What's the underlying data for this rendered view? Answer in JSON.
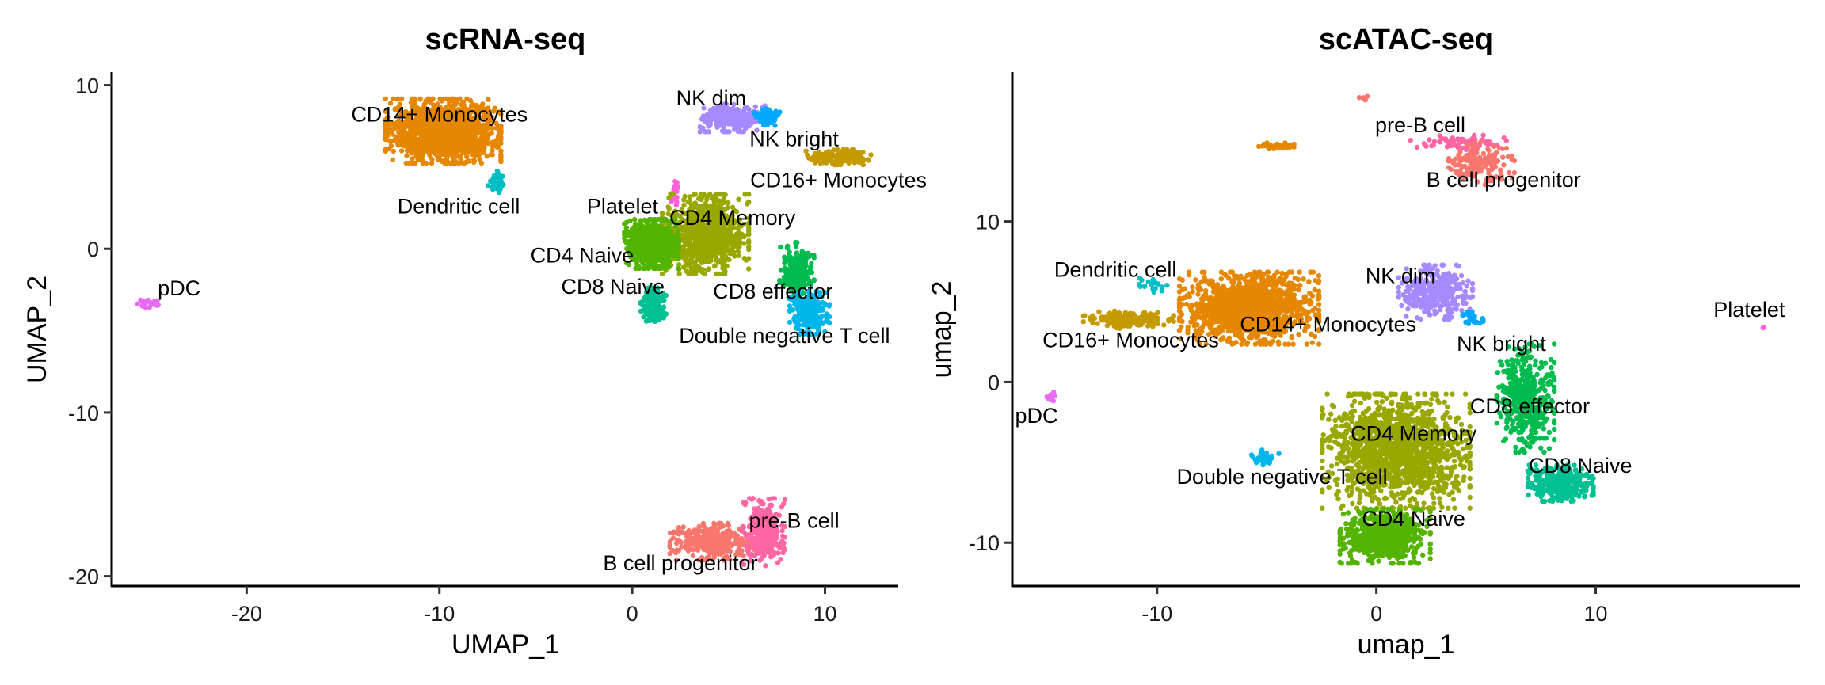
{
  "chart_data": [
    {
      "type": "scatter",
      "title": "scRNA-seq",
      "xlabel": "UMAP_1",
      "ylabel": "UMAP_2",
      "xlim": [
        -27.0,
        13.8
      ],
      "ylim": [
        -20.6,
        10.8
      ],
      "xticks": [
        -20,
        -10,
        0,
        10
      ],
      "yticks": [
        -20,
        -10,
        0,
        10
      ],
      "grid": false,
      "legend": "none",
      "clusters": [
        {
          "name": "CD14+ Monocytes",
          "color": "#E58700",
          "center": [
            -9.8,
            7.2
          ],
          "spread": [
            1.6,
            1.05
          ],
          "n": 1400,
          "label_pos": [
            -10.0,
            8.2
          ]
        },
        {
          "name": "Dendritic cell",
          "color": "#00BFC4",
          "center": [
            -7.0,
            4.1
          ],
          "spread": [
            0.25,
            0.35
          ],
          "n": 40,
          "label_pos": [
            -9.0,
            2.6
          ]
        },
        {
          "name": "NK dim",
          "color": "#A58AFF",
          "center": [
            5.2,
            8.0
          ],
          "spread": [
            0.9,
            0.45
          ],
          "n": 260,
          "label_pos": [
            4.1,
            9.2
          ]
        },
        {
          "name": "NK bright",
          "color": "#00A9FF",
          "center": [
            7.0,
            8.1
          ],
          "spread": [
            0.35,
            0.3
          ],
          "n": 70,
          "label_pos": [
            8.4,
            6.7
          ]
        },
        {
          "name": "CD16+ Monocytes",
          "color": "#C49A00",
          "center": [
            10.7,
            5.6
          ],
          "spread": [
            0.9,
            0.25
          ],
          "n": 150,
          "label_pos": [
            10.7,
            4.2
          ]
        },
        {
          "name": "Platelet",
          "color": "#FB61D7",
          "center": [
            2.2,
            3.3
          ],
          "spread": [
            0.15,
            0.5
          ],
          "n": 25,
          "label_pos": [
            -0.5,
            2.6
          ]
        },
        {
          "name": "CD4 Memory",
          "color": "#99A800",
          "center": [
            3.8,
            0.9
          ],
          "spread": [
            1.2,
            1.3
          ],
          "n": 900,
          "label_pos": [
            5.2,
            1.9
          ]
        },
        {
          "name": "CD4 Naive",
          "color": "#53B400",
          "center": [
            1.0,
            0.3
          ],
          "spread": [
            0.75,
            0.8
          ],
          "n": 700,
          "label_pos": [
            -2.6,
            -0.4
          ]
        },
        {
          "name": "CD8 Naive",
          "color": "#00C094",
          "center": [
            1.1,
            -3.5
          ],
          "spread": [
            0.35,
            0.6
          ],
          "n": 140,
          "label_pos": [
            -1.0,
            -2.3
          ]
        },
        {
          "name": "CD8 effector",
          "color": "#00BB4E",
          "center": [
            8.5,
            -1.3
          ],
          "spread": [
            0.5,
            0.9
          ],
          "n": 200,
          "label_pos": [
            7.3,
            -2.6
          ]
        },
        {
          "name": "Double negative T cell",
          "color": "#00B6EB",
          "center": [
            9.2,
            -3.9
          ],
          "spread": [
            0.55,
            0.7
          ],
          "n": 220,
          "label_pos": [
            7.9,
            -5.3
          ]
        },
        {
          "name": "pDC",
          "color": "#E76BF3",
          "center": [
            -25.0,
            -3.3
          ],
          "spread": [
            0.35,
            0.15
          ],
          "n": 20,
          "label_pos": [
            -23.5,
            -2.4
          ]
        },
        {
          "name": "B cell progenitor",
          "color": "#F8766D",
          "center": [
            4.2,
            -17.9
          ],
          "spread": [
            1.2,
            0.6
          ],
          "n": 350,
          "label_pos": [
            2.5,
            -19.2
          ]
        },
        {
          "name": "pre-B cell",
          "color": "#FF67A4",
          "center": [
            6.8,
            -17.3
          ],
          "spread": [
            0.6,
            1.1
          ],
          "n": 300,
          "label_pos": [
            8.4,
            -16.6
          ]
        }
      ]
    },
    {
      "type": "scatter",
      "title": "scATAC-seq",
      "xlabel": "umap_1",
      "ylabel": "umap_2",
      "xlim": [
        -16.6,
        19.3
      ],
      "ylim": [
        -12.7,
        19.3
      ],
      "xticks": [
        -10,
        0,
        10
      ],
      "yticks": [
        -10,
        0,
        10
      ],
      "grid": false,
      "legend": "none",
      "clusters": [
        {
          "name": "CD14+ Monocytes",
          "color": "#E58700",
          "center": [
            -5.8,
            4.6
          ],
          "spread": [
            1.7,
            1.2
          ],
          "n": 1300,
          "label_pos": [
            -2.2,
            3.6
          ]
        },
        {
          "name": "CD16+ Monocytes",
          "color": "#C49A00",
          "center": [
            -11.3,
            3.9
          ],
          "spread": [
            1.1,
            0.3
          ],
          "n": 160,
          "label_pos": [
            -11.2,
            2.6
          ]
        },
        {
          "name": "Dendritic cell",
          "color": "#00BFC4",
          "center": [
            -10.2,
            6.0
          ],
          "spread": [
            0.35,
            0.3
          ],
          "n": 20,
          "label_pos": [
            -11.9,
            7.0
          ]
        },
        {
          "name": "pDC",
          "color": "#E76BF3",
          "center": [
            -14.8,
            -0.9
          ],
          "spread": [
            0.15,
            0.15
          ],
          "n": 12,
          "label_pos": [
            -15.5,
            -2.1
          ]
        },
        {
          "name": "NK dim",
          "color": "#A58AFF",
          "center": [
            2.7,
            5.6
          ],
          "spread": [
            0.9,
            0.9
          ],
          "n": 380,
          "label_pos": [
            1.1,
            6.6
          ]
        },
        {
          "name": "NK bright",
          "color": "#00A9FF",
          "center": [
            4.4,
            3.9
          ],
          "spread": [
            0.25,
            0.25
          ],
          "n": 25,
          "label_pos": [
            5.7,
            2.4
          ]
        },
        {
          "name": "pre-B cell",
          "color": "#FF67A4",
          "center": [
            3.8,
            14.9
          ],
          "spread": [
            1.2,
            0.25
          ],
          "n": 80,
          "label_pos": [
            2.0,
            16.0
          ]
        },
        {
          "name": "B cell progenitor",
          "color": "#F8766D",
          "center": [
            4.8,
            13.6
          ],
          "spread": [
            0.8,
            0.7
          ],
          "n": 140,
          "label_pos": [
            5.8,
            12.6
          ]
        },
        {
          "name": "Double negative T cell",
          "color": "#00B6EB",
          "center": [
            -5.1,
            -4.7
          ],
          "spread": [
            0.35,
            0.25
          ],
          "n": 40,
          "label_pos": [
            -4.3,
            -5.9
          ]
        },
        {
          "name": "CD4 Memory",
          "color": "#99A800",
          "center": [
            0.9,
            -4.3
          ],
          "spread": [
            1.8,
            1.9
          ],
          "n": 1500,
          "label_pos": [
            1.7,
            -3.2
          ]
        },
        {
          "name": "CD4 Naive",
          "color": "#53B400",
          "center": [
            0.4,
            -9.6
          ],
          "spread": [
            1.1,
            0.9
          ],
          "n": 700,
          "label_pos": [
            1.7,
            -8.5
          ]
        },
        {
          "name": "CD8 effector",
          "color": "#00BB4E",
          "center": [
            6.8,
            -1.0
          ],
          "spread": [
            0.7,
            1.8
          ],
          "n": 450,
          "label_pos": [
            7.0,
            -1.5
          ]
        },
        {
          "name": "CD8 Naive",
          "color": "#00C094",
          "center": [
            8.4,
            -6.3
          ],
          "spread": [
            0.8,
            0.6
          ],
          "n": 350,
          "label_pos": [
            9.3,
            -5.2
          ]
        },
        {
          "name": "Platelet",
          "color": "#FB61D7",
          "center": [
            17.6,
            3.3
          ],
          "spread": [
            0.05,
            0.05
          ],
          "n": 2,
          "label_pos": [
            17.0,
            4.5
          ]
        },
        {
          "name": "",
          "color": "#E58700",
          "center": [
            -4.6,
            14.7
          ],
          "spread": [
            0.45,
            0.1
          ],
          "n": 40,
          "label_pos": null
        },
        {
          "name": "",
          "color": "#F8766D",
          "center": [
            -0.6,
            17.7
          ],
          "spread": [
            0.12,
            0.1
          ],
          "n": 8,
          "label_pos": null
        }
      ]
    }
  ]
}
